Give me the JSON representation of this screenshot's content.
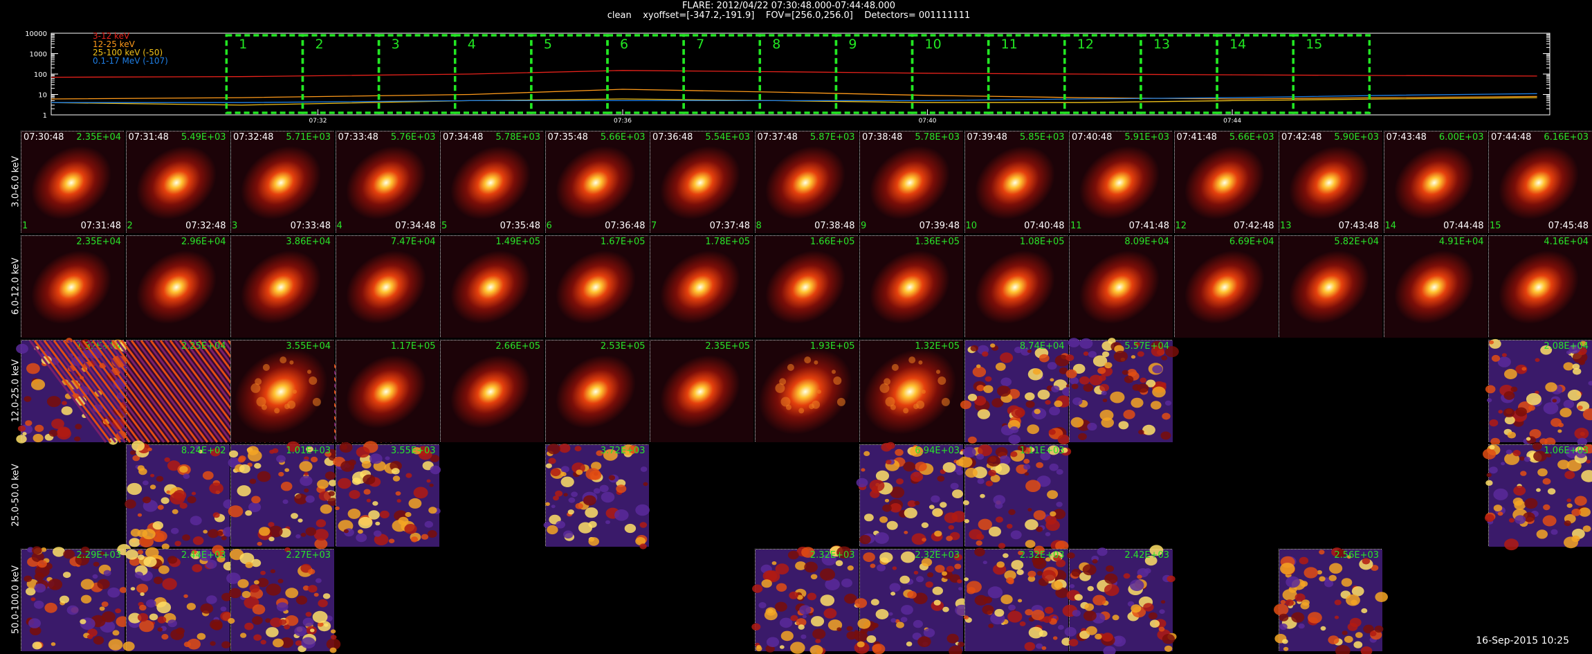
{
  "header": {
    "line1": "FLARE: 2012/04/22 07:30:48.000-07:44:48.000",
    "line2": "clean    xyoffset=[-347.2,-191.9]    FOV=[256.0,256.0]    Detectors= 001111111"
  },
  "colors": {
    "lowE": "#e8221b",
    "midE": "#ff9a1a",
    "hiE": "#f2c21a",
    "gamma": "#1f7fe6",
    "box": "#22e622",
    "peak": "#29e52a"
  },
  "chart_data": {
    "type": "line",
    "y_scale": "log",
    "ylim": [
      1,
      10000
    ],
    "y_ticks": [
      "10000",
      "1000",
      "100",
      "10",
      "1"
    ],
    "x_ticks": [
      "07:32",
      "07:36",
      "07:40",
      "07:44"
    ],
    "x_range": [
      "07:28:30",
      "07:48:10"
    ],
    "series": [
      {
        "name": "3-12 keV",
        "color": "#e8221b",
        "x": [
          "07:28:30",
          "07:31",
          "07:34",
          "07:36",
          "07:38",
          "07:40",
          "07:42",
          "07:44",
          "07:46",
          "07:48"
        ],
        "y": [
          70,
          75,
          100,
          150,
          130,
          110,
          100,
          92,
          85,
          80
        ]
      },
      {
        "name": "12-25 keV",
        "color": "#ff9a1a",
        "x": [
          "07:28:30",
          "07:31",
          "07:34",
          "07:36",
          "07:38",
          "07:40",
          "07:42",
          "07:44",
          "07:46",
          "07:48"
        ],
        "y": [
          6,
          7,
          10,
          18,
          13,
          9,
          7,
          6,
          7,
          8
        ]
      },
      {
        "name": "25-100 keV (-50)",
        "color": "#f2c21a",
        "x": [
          "07:28:30",
          "07:31",
          "07:34",
          "07:36",
          "07:38",
          "07:40",
          "07:42",
          "07:44",
          "07:46",
          "07:48"
        ],
        "y": [
          4,
          3,
          5,
          6,
          5,
          4,
          4,
          5,
          6,
          7
        ]
      },
      {
        "name": "0.1-17 MeV (-107)",
        "color": "#1f7fe6",
        "x": [
          "07:28:30",
          "07:31",
          "07:34",
          "07:36",
          "07:38",
          "07:40",
          "07:42",
          "07:44",
          "07:46",
          "07:48"
        ],
        "y": [
          4,
          4,
          5,
          5,
          5,
          5,
          6,
          7,
          9,
          11
        ]
      }
    ],
    "intervals": [
      {
        "label": "1",
        "start": "07:30:48",
        "end": "07:31:48"
      },
      {
        "label": "2",
        "start": "07:31:48",
        "end": "07:32:48"
      },
      {
        "label": "3",
        "start": "07:32:48",
        "end": "07:33:48"
      },
      {
        "label": "4",
        "start": "07:33:48",
        "end": "07:34:48"
      },
      {
        "label": "5",
        "start": "07:34:48",
        "end": "07:35:48"
      },
      {
        "label": "6",
        "start": "07:35:48",
        "end": "07:36:48"
      },
      {
        "label": "7",
        "start": "07:36:48",
        "end": "07:37:48"
      },
      {
        "label": "8",
        "start": "07:37:48",
        "end": "07:38:48"
      },
      {
        "label": "9",
        "start": "07:38:48",
        "end": "07:39:48"
      },
      {
        "label": "10",
        "start": "07:39:48",
        "end": "07:40:48"
      },
      {
        "label": "11",
        "start": "07:40:48",
        "end": "07:41:48"
      },
      {
        "label": "12",
        "start": "07:41:48",
        "end": "07:42:48"
      },
      {
        "label": "13",
        "start": "07:42:48",
        "end": "07:43:48"
      },
      {
        "label": "14",
        "start": "07:43:48",
        "end": "07:44:48"
      },
      {
        "label": "15",
        "start": "07:44:48",
        "end": "07:45:48"
      }
    ]
  },
  "image_grid": {
    "energy_bands": [
      "3.0-6.0 keV",
      "6.0-12.0 keV",
      "12.0-25.0 keV",
      "25.0-50.0 keV",
      "50.0-100.0 keV"
    ],
    "start_times": [
      "07:30:48",
      "07:31:48",
      "07:32:48",
      "07:33:48",
      "07:34:48",
      "07:35:48",
      "07:36:48",
      "07:37:48",
      "07:38:48",
      "07:39:48",
      "07:40:48",
      "07:41:48",
      "07:42:48",
      "07:43:48",
      "07:44:48"
    ],
    "end_times": [
      "07:31:48",
      "07:32:48",
      "07:33:48",
      "07:34:48",
      "07:35:48",
      "07:36:48",
      "07:37:48",
      "07:38:48",
      "07:39:48",
      "07:40:48",
      "07:41:48",
      "07:42:48",
      "07:43:48",
      "07:44:48",
      "07:45:48"
    ],
    "rows": [
      {
        "peaks": [
          "2.35E+04",
          "5.49E+03",
          "5.71E+03",
          "5.76E+03",
          "5.78E+03",
          "5.66E+03",
          "5.54E+03",
          "5.87E+03",
          "5.78E+03",
          "5.85E+03",
          "5.91E+03",
          "5.66E+03",
          "5.90E+03",
          "6.00E+03",
          "6.16E+03"
        ],
        "styles": [
          "compact",
          "compact",
          "compact",
          "compact",
          "compact",
          "compact",
          "compact",
          "compact",
          "compact",
          "compact",
          "compact",
          "compact",
          "compact",
          "compact",
          "compact"
        ]
      },
      {
        "peaks": [
          "2.35E+04",
          "2.96E+04",
          "3.86E+04",
          "7.47E+04",
          "1.49E+05",
          "1.67E+05",
          "1.78E+05",
          "1.66E+05",
          "1.36E+05",
          "1.08E+05",
          "8.09E+04",
          "6.69E+04",
          "5.82E+04",
          "4.91E+04",
          "4.16E+04"
        ],
        "styles": [
          "compact",
          "compact",
          "compact",
          "compact",
          "compact",
          "compact",
          "compact",
          "compact",
          "compact",
          "compact",
          "compact",
          "compact",
          "compact",
          "compact",
          "compact"
        ]
      },
      {
        "peaks": [
          "1.32E+04",
          "2.25E+04",
          "3.55E+04",
          "1.17E+05",
          "2.66E+05",
          "2.53E+05",
          "2.35E+05",
          "1.93E+05",
          "1.32E+05",
          "8.74E+04",
          "5.57E+04",
          null,
          null,
          null,
          "2.08E+04"
        ],
        "styles": [
          "noise",
          "stripes",
          "diffuse",
          "compact",
          "compact",
          "compact",
          "compact",
          "diffuse",
          "diffuse",
          "noise",
          "noise",
          null,
          null,
          null,
          "noise"
        ]
      },
      {
        "peaks": [
          null,
          "8.24E+02",
          "1.01E+03",
          "3.55E+03",
          null,
          "3.72E+03",
          null,
          null,
          "6.94E+03",
          "1.11E+03",
          null,
          null,
          null,
          null,
          "1.06E+03"
        ],
        "styles": [
          null,
          "noise",
          "noise",
          "noise",
          null,
          "noise",
          null,
          null,
          "noise",
          "noise",
          null,
          null,
          null,
          null,
          "noise"
        ]
      },
      {
        "peaks": [
          "2.29E+03",
          "2.44E+03",
          "2.27E+03",
          null,
          null,
          null,
          null,
          "2.32E+03",
          "2.32E+03",
          "2.32E+03",
          "2.42E+03",
          null,
          "2.56E+03",
          null,
          null
        ],
        "styles": [
          "noise",
          "noise",
          "noise",
          null,
          null,
          null,
          null,
          "noise",
          "noise",
          "noise",
          "noise",
          null,
          "noise",
          null,
          null
        ]
      }
    ]
  },
  "footer": {
    "stamp": "16-Sep-2015 10:25"
  }
}
